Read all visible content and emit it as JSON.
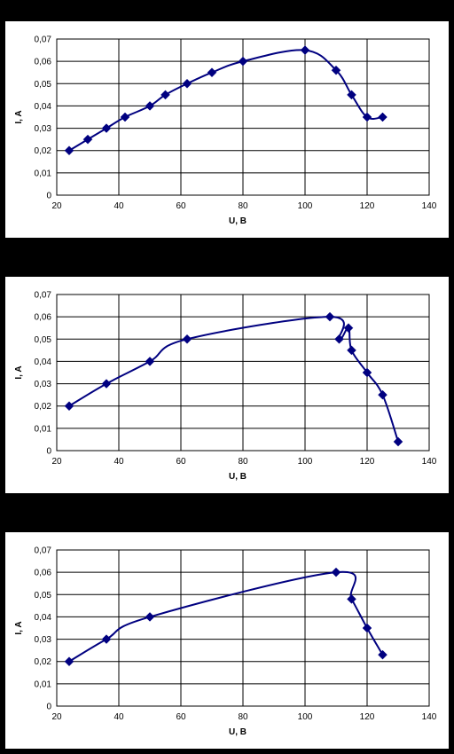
{
  "colors": {
    "background": "#000000",
    "plot_bg": "#ffffff",
    "grid": "#000000",
    "series": "#000080"
  },
  "chart_data": [
    {
      "type": "line",
      "title": "",
      "xlabel": "U, B",
      "ylabel": "I, A",
      "xlim": [
        20,
        140
      ],
      "ylim": [
        0,
        0.07
      ],
      "x_ticks": [
        "20",
        "40",
        "60",
        "80",
        "100",
        "120",
        "140"
      ],
      "y_ticks": [
        "0",
        "0,01",
        "0,02",
        "0,03",
        "0,04",
        "0,05",
        "0,06",
        "0,07"
      ],
      "grid": true,
      "legend": "none",
      "marker": "diamond",
      "series": [
        {
          "x": [
            24,
            30,
            36,
            42,
            50,
            55,
            62,
            70,
            80,
            100,
            110,
            115,
            120,
            125
          ],
          "y": [
            0.02,
            0.025,
            0.03,
            0.035,
            0.04,
            0.045,
            0.05,
            0.055,
            0.06,
            0.065,
            0.056,
            0.045,
            0.035,
            0.035
          ]
        }
      ]
    },
    {
      "type": "line",
      "title": "",
      "xlabel": "U, B",
      "ylabel": "I, A",
      "xlim": [
        20,
        140
      ],
      "ylim": [
        0,
        0.07
      ],
      "x_ticks": [
        "20",
        "40",
        "60",
        "80",
        "100",
        "120",
        "140"
      ],
      "y_ticks": [
        "0",
        "0,01",
        "0,02",
        "0,03",
        "0,04",
        "0,05",
        "0,06",
        "0,07"
      ],
      "grid": true,
      "legend": "none",
      "marker": "diamond",
      "series": [
        {
          "x": [
            24,
            36,
            50,
            62,
            108,
            111,
            114,
            115,
            120,
            125,
            130
          ],
          "y": [
            0.02,
            0.03,
            0.04,
            0.05,
            0.06,
            0.05,
            0.055,
            0.045,
            0.035,
            0.025,
            0.004
          ]
        }
      ]
    },
    {
      "type": "line",
      "title": "",
      "xlabel": "U, B",
      "ylabel": "I, A",
      "xlim": [
        20,
        140
      ],
      "ylim": [
        0,
        0.07
      ],
      "x_ticks": [
        "20",
        "40",
        "60",
        "80",
        "100",
        "120",
        "140"
      ],
      "y_ticks": [
        "0",
        "0,01",
        "0,02",
        "0,03",
        "0,04",
        "0,05",
        "0,06",
        "0,07"
      ],
      "grid": true,
      "legend": "none",
      "marker": "diamond",
      "series": [
        {
          "x": [
            24,
            36,
            50,
            110,
            115,
            120,
            125
          ],
          "y": [
            0.02,
            0.03,
            0.04,
            0.06,
            0.048,
            0.035,
            0.023
          ]
        }
      ]
    }
  ]
}
